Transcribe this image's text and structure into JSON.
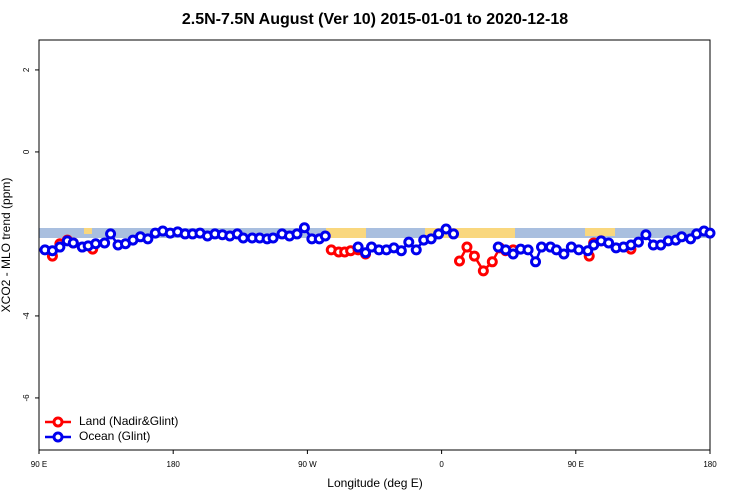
{
  "chart_data": {
    "type": "line",
    "title": "2.5N-7.5N August (Ver 10)   2015-01-01 to 2020-12-18",
    "x_label": "Longitude (deg E)",
    "y_label": "XCO2 - MLO trend (ppm)",
    "xlim": [
      90,
      540
    ],
    "xticks": [
      {
        "value": 90,
        "label": "90 E"
      },
      180,
      {
        "value": 270,
        "label": "90 W"
      },
      {
        "value": 360,
        "label": "0"
      },
      {
        "value": 450,
        "label": "90 E"
      },
      {
        "value": 540,
        "label": "180"
      }
    ],
    "ylim": [
      -7.27,
      2.73
    ],
    "yticks": [
      2,
      0,
      -4,
      -6
    ],
    "legend": "bottom-left",
    "series": [
      {
        "name": "Land (Nadir&Glint)",
        "color": "#ff0000",
        "x": [
          99,
          104,
          109,
          113,
          126,
          200,
          286,
          291,
          295,
          299,
          304,
          309,
          340,
          372,
          377,
          382,
          388,
          394,
          399,
          403,
          408,
          430,
          459,
          462,
          467,
          475,
          487
        ],
        "values": [
          -2.54,
          -2.24,
          -2.15,
          -2.22,
          -2.37,
          null,
          -2.39,
          -2.44,
          -2.44,
          -2.41,
          -2.39,
          -2.49,
          null,
          -2.66,
          -2.32,
          -2.54,
          -2.9,
          -2.68,
          -2.34,
          -2.41,
          -2.39,
          null,
          -2.54,
          -2.22,
          -2.17,
          null,
          -2.37
        ]
      },
      {
        "name": "Ocean (Glint)",
        "color": "#0000ee",
        "x": [
          94,
          99,
          104,
          109,
          113,
          119,
          123,
          128,
          134,
          138,
          143,
          148,
          153,
          158,
          163,
          168,
          173,
          178,
          183,
          188,
          193,
          198,
          203,
          208,
          213,
          218,
          223,
          227,
          233,
          238,
          243,
          247,
          253,
          258,
          263,
          268,
          273,
          278,
          282,
          293,
          304,
          309,
          313,
          318,
          323,
          328,
          333,
          338,
          343,
          348,
          353,
          358,
          363,
          368,
          383,
          398,
          403,
          408,
          413,
          418,
          423,
          427,
          433,
          437,
          442,
          447,
          452,
          458,
          462,
          467,
          472,
          477,
          482,
          487,
          492,
          497,
          502,
          507,
          512,
          517,
          521,
          527,
          531,
          536,
          540
        ],
        "values": [
          -2.39,
          -2.41,
          -2.32,
          -2.17,
          -2.22,
          -2.32,
          -2.29,
          -2.24,
          -2.22,
          -2.0,
          -2.27,
          -2.24,
          -2.15,
          -2.07,
          -2.12,
          -1.98,
          -1.93,
          -1.98,
          -1.95,
          -2.0,
          -2.0,
          -1.98,
          -2.05,
          -2.0,
          -2.02,
          -2.05,
          -2.0,
          -2.1,
          -2.1,
          -2.1,
          -2.12,
          -2.1,
          -2.0,
          -2.05,
          -2.0,
          -1.85,
          -2.12,
          -2.12,
          -2.05,
          null,
          -2.32,
          -2.46,
          -2.32,
          -2.39,
          -2.39,
          -2.34,
          -2.41,
          -2.2,
          -2.39,
          -2.15,
          -2.12,
          -2.0,
          -1.88,
          -2.0,
          null,
          -2.32,
          -2.39,
          -2.49,
          -2.37,
          -2.39,
          -2.68,
          -2.32,
          -2.32,
          -2.39,
          -2.49,
          -2.32,
          -2.39,
          -2.41,
          -2.27,
          -2.17,
          -2.22,
          -2.34,
          -2.32,
          -2.27,
          -2.2,
          -2.02,
          -2.27,
          -2.27,
          -2.17,
          -2.15,
          -2.07,
          -2.12,
          -2.0,
          -1.93,
          -1.98
        ]
      }
    ]
  }
}
